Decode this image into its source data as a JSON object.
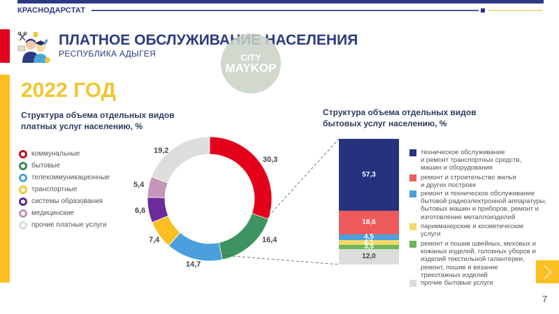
{
  "header": {
    "org_name": "КРАСНОДАРСТАТ",
    "title": "ПЛАТНОЕ ОБСЛУЖИВАНИЕ НАСЕЛЕНИЯ",
    "subtitle": "РЕСПУБЛИКА АДЫГЕЯ",
    "icon": "people-services-icon",
    "watermark_line1": "CITY",
    "watermark_line2": "MAYKOP"
  },
  "year_title": "2022 ГОД",
  "colors": {
    "brand_blue": "#2b3a82",
    "accent_yellow": "#fbbf24",
    "accent_red": "#e3001b"
  },
  "left_chart": {
    "title_line1": "Структура объема отдельных видов",
    "title_line2": "платных услуг населению, %"
  },
  "right_chart": {
    "title_line1": "Структура объема отдельных видов",
    "title_line2": "бытовых услуг населению, %"
  },
  "chart_data": [
    {
      "type": "pie",
      "subtype": "donut",
      "title": "Структура объема отдельных видов платных услуг населению, %",
      "categories": [
        "коммунальные",
        "бытовые",
        "телекоммуникационные",
        "транспортные",
        "системы образования",
        "медицинские",
        "прочие платные услуги"
      ],
      "values": [
        30.3,
        16.4,
        14.7,
        7.4,
        6.6,
        5.4,
        19.2
      ],
      "labels": [
        "30,3",
        "16,4",
        "14,7",
        "7,4",
        "6,6",
        "5,4",
        "19,2"
      ],
      "colors": [
        "#e3001b",
        "#3d9460",
        "#4a9fdc",
        "#fbbf24",
        "#6a2c9a",
        "#c795b8",
        "#dddddd"
      ],
      "legend_position": "left"
    },
    {
      "type": "bar",
      "subtype": "stacked-100",
      "title": "Структура объема отдельных видов бытовых услуг населению, %",
      "categories": [
        "техническое обслуживание и ремонт транспортных средств, машин и оборудования",
        "ремонт и строительство жилья и других построек",
        "ремонт и техническое обслуживание бытовой радиоэлектронной аппаратуры, бытовых машин и приборов, ремонт и изготовление металлоизделий",
        "парикмахерские и косметические услуги",
        "ремонт и пошив швейных, меховых и кожаных изделий, головных уборов и изделий текстильной галантереи, ремонт, пошив и вязание трикотажных изделий",
        "прочие бытовые услуги"
      ],
      "values": [
        57.3,
        18.6,
        4.5,
        4.1,
        3.5,
        12.0
      ],
      "labels": [
        "57,3",
        "18,6",
        "4,5",
        "4,1",
        "3,5",
        "12,0"
      ],
      "colors": [
        "#25337e",
        "#ef5a5a",
        "#4a9fdc",
        "#f3d86a",
        "#6db857",
        "#dcdcdc"
      ],
      "legend_position": "right"
    }
  ],
  "donut_labels": {
    "communal": "30,3",
    "household": "16,4",
    "telecom": "14,7",
    "transport": "7,4",
    "education": "6,6",
    "medical": "5,4",
    "other": "19,2"
  },
  "left_legend": [
    {
      "label": "коммунальные",
      "color": "#c0102a"
    },
    {
      "label": "бытовые",
      "color": "#3d8a5a"
    },
    {
      "label": "телекоммуникационные",
      "color": "#4a9fdc"
    },
    {
      "label": "транспортные",
      "color": "#f2c532"
    },
    {
      "label": "системы образования",
      "color": "#5a2a8a"
    },
    {
      "label": "медицинские",
      "color": "#c095b5"
    },
    {
      "label": "прочие платные услуги",
      "color": "#dddddd"
    }
  ],
  "stack_labels": [
    "57,3",
    "18,6",
    "4,5",
    "4,1",
    "3,5",
    "12,0"
  ],
  "right_legend": [
    {
      "label": "техническое обслуживание\nи ремонт транспортных средств,\nмашин и оборудования",
      "color": "#25337e"
    },
    {
      "label": "ремонт и строительство жилья\nи других построек",
      "color": "#ef5a5a"
    },
    {
      "label": "ремонт и техническое обслуживание\nбытовой радиоэлектронной аппаратуры,\nбытовых машин и приборов, ремонт и\nизготовление металлоизделий",
      "color": "#4a9fdc"
    },
    {
      "label": "парикмахерские и косметические\nуслуги",
      "color": "#f3d86a"
    },
    {
      "label": "ремонт и пошив швейных, меховых и\nкожаных изделий, головных уборов и\nизделий текстильной галантереи,\nремонт, пошив и вязание\nтрикотажных изделий",
      "color": "#6db857"
    },
    {
      "label": "прочие бытовые услуги",
      "color": "#dcdcdc"
    }
  ],
  "footer": {
    "page_number": "7",
    "next_icon": "chevron-right-icon"
  }
}
